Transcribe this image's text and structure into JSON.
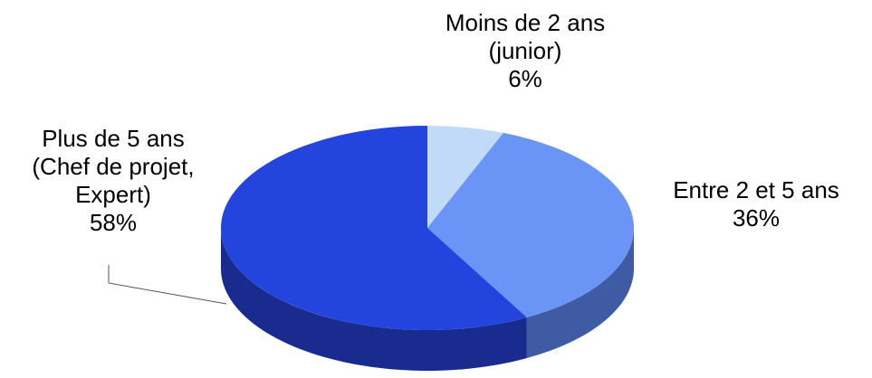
{
  "chart_data": {
    "type": "pie3d",
    "categories": [
      "Moins de 2 ans (junior)",
      "Entre 2 et 5 ans",
      "Plus de 5 ans (Chef de projet, Expert)"
    ],
    "values": [
      6,
      36,
      58
    ],
    "value_labels": [
      "6%",
      "36%",
      "58%"
    ],
    "colors": [
      "#c2daf9",
      "#6a94f6",
      "#2445dd"
    ],
    "side_colors": [
      "#8ea4c4",
      "#3f5ba3",
      "#1a2b90"
    ]
  }
}
